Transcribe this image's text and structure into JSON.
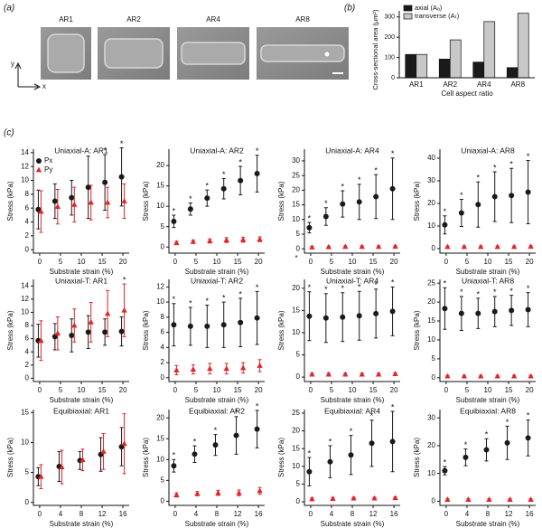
{
  "panel_labels": [
    "(a)",
    "(b)",
    "(c)"
  ],
  "images": {
    "labels": [
      "AR1",
      "AR2",
      "AR4",
      "AR8"
    ],
    "axes": [
      "y",
      "x"
    ]
  },
  "chart_data": [
    {
      "type": "bar",
      "categories": [
        "AR1",
        "AR2",
        "AR4",
        "AR8"
      ],
      "series": [
        {
          "name": "axial (Aₐ)",
          "color": "#1a1a1a",
          "values": [
            115,
            92,
            77,
            50
          ]
        },
        {
          "name": "transverse (Aₜ)",
          "color": "#c8c8c8",
          "values": [
            115,
            187,
            277,
            318
          ]
        }
      ],
      "ylim": [
        0,
        330
      ],
      "yticks": [
        0,
        100,
        200,
        300
      ],
      "ylabel": "Cross-sectional area (μm²)",
      "xlabel": "Cell aspect ratio"
    },
    {
      "type": "errorbar",
      "title": "Uniaxial-A: AR1",
      "x": [
        0,
        4,
        8,
        12,
        16,
        20
      ],
      "xlim": [
        -1.5,
        21.5
      ],
      "xticks": [
        0,
        5,
        10,
        15,
        20
      ],
      "ylim": [
        -0.5,
        14.5
      ],
      "yticks": [
        0,
        2,
        4,
        6,
        8,
        10,
        12,
        14
      ],
      "xlabel": "Substrate strain (%)",
      "ylabel": "Stress (kPa)",
      "legend": true,
      "series": [
        {
          "name": "Px",
          "color": "#1a1a1a",
          "marker": "circle",
          "values": [
            5.8,
            7.0,
            7.5,
            9.0,
            9.7,
            10.5
          ],
          "errors": [
            2.8,
            2.5,
            2.5,
            4.5,
            4.0,
            4.2
          ],
          "annotations": [
            null,
            null,
            null,
            null,
            "*",
            "*"
          ]
        },
        {
          "name": "Py",
          "color": "#e0262b",
          "marker": "triangle",
          "values": [
            5.5,
            6.2,
            6.5,
            6.8,
            6.8,
            7.0
          ],
          "errors": [
            3.0,
            2.5,
            2.5,
            2.5,
            2.2,
            2.5
          ]
        }
      ]
    },
    {
      "type": "errorbar",
      "title": "Uniaxial-A: AR2",
      "x": [
        0,
        4,
        8,
        12,
        16,
        20
      ],
      "xlim": [
        -1.5,
        21.5
      ],
      "xticks": [
        0,
        5,
        10,
        15,
        20
      ],
      "ylim": [
        -1.5,
        24
      ],
      "yticks": [
        0,
        5,
        10,
        15,
        20
      ],
      "xlabel": "Substrate strain (%)",
      "ylabel": "Stress (kPa)",
      "series": [
        {
          "color": "#1a1a1a",
          "marker": "circle",
          "values": [
            6.3,
            9.3,
            12.0,
            14.3,
            16.3,
            18.0
          ],
          "errors": [
            1.5,
            1.5,
            2.0,
            2.5,
            3.5,
            4.5
          ],
          "annotations": [
            "*",
            "*",
            "*",
            "*",
            "*",
            "*"
          ]
        },
        {
          "color": "#e0262b",
          "marker": "triangle",
          "values": [
            1.0,
            1.3,
            1.5,
            1.7,
            1.8,
            1.9
          ],
          "errors": [
            0.4,
            0.4,
            0.5,
            0.6,
            0.6,
            0.6
          ]
        }
      ]
    },
    {
      "type": "errorbar",
      "title": "Uniaxial-A: AR4",
      "x": [
        0,
        4,
        8,
        12,
        16,
        20
      ],
      "xlim": [
        -1.5,
        21.5
      ],
      "xticks": [
        0,
        5,
        10,
        15,
        20
      ],
      "ylim": [
        -1.5,
        34
      ],
      "yticks": [
        0,
        5,
        10,
        15,
        20,
        25,
        30
      ],
      "xlabel": "Substrate strain (%)",
      "ylabel": "Stress (kPa)",
      "corner_note": "*",
      "series": [
        {
          "color": "#1a1a1a",
          "marker": "circle",
          "values": [
            7.2,
            11.0,
            15.3,
            16.0,
            17.8,
            20.5
          ],
          "errors": [
            1.8,
            3.0,
            4.5,
            6.0,
            7.5,
            10.5
          ],
          "annotations": [
            "*",
            "*",
            "*",
            "*",
            "*",
            "*"
          ]
        },
        {
          "color": "#e0262b",
          "marker": "triangle",
          "values": [
            0.5,
            0.6,
            0.7,
            0.7,
            0.7,
            0.8
          ],
          "errors": [
            0.3,
            0.3,
            0.3,
            0.3,
            0.3,
            0.3
          ]
        }
      ]
    },
    {
      "type": "errorbar",
      "title": "Uniaxial-A: AR8",
      "x": [
        0,
        4,
        8,
        12,
        16,
        20
      ],
      "xlim": [
        -1.5,
        21.5
      ],
      "xticks": [
        0,
        5,
        10,
        15,
        20
      ],
      "ylim": [
        -2,
        44
      ],
      "yticks": [
        0,
        10,
        20,
        30,
        40
      ],
      "xlabel": "Substrate strain (%)",
      "ylabel": "Stress (kPa)",
      "series": [
        {
          "color": "#1a1a1a",
          "marker": "circle",
          "values": [
            10.5,
            15.8,
            19.5,
            23.0,
            23.5,
            25.0
          ],
          "errors": [
            4.0,
            6.0,
            10.0,
            11.0,
            12.0,
            14.0
          ],
          "annotations": [
            "*",
            "*",
            "*",
            "*",
            "*",
            "*"
          ]
        },
        {
          "color": "#e0262b",
          "marker": "triangle",
          "values": [
            0.8,
            0.8,
            0.8,
            0.8,
            0.8,
            0.9
          ],
          "errors": [
            0.4,
            0.4,
            0.4,
            0.4,
            0.4,
            0.4
          ]
        }
      ]
    },
    {
      "type": "errorbar",
      "title": "Uniaxial-T: AR1",
      "x": [
        0,
        4,
        8,
        12,
        16,
        20
      ],
      "xlim": [
        -1.5,
        21.5
      ],
      "xticks": [
        0,
        5,
        10,
        15,
        20
      ],
      "ylim": [
        -0.5,
        15
      ],
      "yticks": [
        0,
        2,
        4,
        6,
        8,
        10,
        12,
        14
      ],
      "xlabel": "Substrate strain (%)",
      "ylabel": "Stress (kPa)",
      "series": [
        {
          "color": "#1a1a1a",
          "marker": "circle",
          "values": [
            5.7,
            6.3,
            6.5,
            7.0,
            7.0,
            7.1
          ],
          "errors": [
            2.5,
            2.0,
            2.5,
            2.5,
            2.0,
            2.2
          ]
        },
        {
          "color": "#e0262b",
          "marker": "triangle",
          "values": [
            5.7,
            6.8,
            8.0,
            8.5,
            9.8,
            10.3
          ],
          "errors": [
            3.0,
            2.5,
            2.5,
            3.0,
            3.5,
            4.0
          ],
          "annotations": [
            null,
            null,
            null,
            null,
            null,
            "*"
          ]
        }
      ]
    },
    {
      "type": "errorbar",
      "title": "Uniaxial-T: AR2",
      "x": [
        0,
        4,
        8,
        12,
        16,
        20
      ],
      "xlim": [
        -1.5,
        21.5
      ],
      "xticks": [
        0,
        5,
        10,
        15,
        20
      ],
      "ylim": [
        -0.5,
        13
      ],
      "yticks": [
        0,
        2,
        4,
        6,
        8,
        10,
        12
      ],
      "xlabel": "Substrate strain (%)",
      "ylabel": "Stress (kPa)",
      "series": [
        {
          "color": "#1a1a1a",
          "marker": "circle",
          "values": [
            7.0,
            6.8,
            6.8,
            7.0,
            7.3,
            7.9
          ],
          "errors": [
            2.8,
            2.5,
            2.8,
            3.0,
            3.2,
            3.5
          ],
          "annotations": [
            "*",
            "*",
            "*",
            "*",
            "*",
            "*"
          ]
        },
        {
          "color": "#e0262b",
          "marker": "triangle",
          "values": [
            1.0,
            1.1,
            1.2,
            1.2,
            1.3,
            1.6
          ],
          "errors": [
            0.6,
            0.6,
            0.7,
            0.7,
            0.7,
            0.8
          ]
        }
      ]
    },
    {
      "type": "errorbar",
      "title": "Uniaxial-T: AR4",
      "x": [
        0,
        4,
        8,
        12,
        16,
        20
      ],
      "xlim": [
        -1.5,
        21.5
      ],
      "xticks": [
        0,
        5,
        10,
        15,
        20
      ],
      "ylim": [
        -1,
        22
      ],
      "yticks": [
        0,
        5,
        10,
        15,
        20
      ],
      "xlabel": "Substrate strain (%)",
      "ylabel": "Stress (kPa)",
      "series": [
        {
          "color": "#1a1a1a",
          "marker": "circle",
          "values": [
            13.7,
            13.3,
            13.5,
            13.8,
            14.3,
            14.8
          ],
          "errors": [
            5.5,
            5.5,
            5.5,
            5.5,
            5.5,
            5.5
          ],
          "annotations": [
            "*",
            "*",
            "*",
            "*",
            "*",
            "*"
          ]
        },
        {
          "color": "#e0262b",
          "marker": "triangle",
          "values": [
            0.6,
            0.6,
            0.6,
            0.6,
            0.6,
            0.7
          ],
          "errors": [
            0.3,
            0.3,
            0.3,
            0.3,
            0.3,
            0.3
          ]
        }
      ]
    },
    {
      "type": "errorbar",
      "title": "Uniaxial-T: AR8",
      "x": [
        0,
        4,
        8,
        12,
        16,
        20
      ],
      "xlim": [
        -1.5,
        21.5
      ],
      "xticks": [
        0,
        5,
        10,
        15,
        20
      ],
      "ylim": [
        -1,
        26
      ],
      "yticks": [
        0,
        5,
        10,
        15,
        20,
        25
      ],
      "xlabel": "Substrate strain (%)",
      "ylabel": "Stress (kPa)",
      "series": [
        {
          "color": "#1a1a1a",
          "marker": "circle",
          "values": [
            18.3,
            17.0,
            17.0,
            17.5,
            17.8,
            18.0
          ],
          "errors": [
            5.5,
            4.5,
            4.0,
            4.0,
            4.0,
            4.5
          ],
          "annotations": [
            "*",
            "*",
            "*",
            "*",
            "*",
            "*"
          ]
        },
        {
          "color": "#e0262b",
          "marker": "triangle",
          "values": [
            0.4,
            0.4,
            0.4,
            0.4,
            0.4,
            0.4
          ],
          "errors": [
            0.2,
            0.2,
            0.2,
            0.2,
            0.2,
            0.2
          ]
        }
      ]
    },
    {
      "type": "errorbar",
      "title": "Equibiaxial: AR1",
      "x": [
        0,
        4,
        8,
        12,
        16
      ],
      "xlim": [
        -1.2,
        17.2
      ],
      "xticks": [
        0,
        4,
        8,
        12,
        16
      ],
      "ylim": [
        -0.5,
        15.5
      ],
      "yticks": [
        0,
        5,
        10,
        15
      ],
      "xlabel": "Substrate strain (%)",
      "ylabel": "Stress (kPa)",
      "series": [
        {
          "color": "#1a1a1a",
          "marker": "circle",
          "values": [
            4.3,
            6.0,
            7.0,
            8.0,
            9.3
          ],
          "errors": [
            1.5,
            2.5,
            1.5,
            2.8,
            3.2
          ]
        },
        {
          "color": "#e0262b",
          "marker": "triangle",
          "values": [
            4.3,
            5.9,
            7.1,
            8.5,
            9.8
          ],
          "errors": [
            2.0,
            2.8,
            1.8,
            3.0,
            5.0
          ]
        }
      ]
    },
    {
      "type": "errorbar",
      "title": "Equibiaxial: AR2",
      "x": [
        0,
        4,
        8,
        12,
        16
      ],
      "xlim": [
        -1.2,
        17.2
      ],
      "xticks": [
        0,
        4,
        8,
        12,
        16
      ],
      "ylim": [
        -1,
        22
      ],
      "yticks": [
        0,
        5,
        10,
        15,
        20
      ],
      "xlabel": "Substrate strain (%)",
      "ylabel": "Stress (kPa)",
      "series": [
        {
          "color": "#1a1a1a",
          "marker": "circle",
          "values": [
            8.5,
            11.3,
            13.5,
            15.8,
            17.3
          ],
          "errors": [
            1.5,
            2.0,
            2.5,
            4.5,
            4.5
          ],
          "annotations": [
            "*",
            "*",
            "*",
            "*",
            "*"
          ]
        },
        {
          "color": "#e0262b",
          "marker": "triangle",
          "values": [
            1.5,
            1.8,
            2.0,
            2.0,
            2.5
          ],
          "errors": [
            0.5,
            0.5,
            0.6,
            0.7,
            0.8
          ]
        }
      ]
    },
    {
      "type": "errorbar",
      "title": "Equibiaxial: AR4",
      "x": [
        0,
        4,
        8,
        12,
        16
      ],
      "xlim": [
        -1.2,
        17.2
      ],
      "xticks": [
        0,
        4,
        8,
        12,
        16
      ],
      "ylim": [
        -1,
        26
      ],
      "yticks": [
        0,
        5,
        10,
        15,
        20,
        25
      ],
      "xlabel": "Substrate strain (%)",
      "ylabel": "Stress (kPa)",
      "series": [
        {
          "color": "#1a1a1a",
          "marker": "circle",
          "values": [
            8.5,
            11.3,
            13.2,
            16.5,
            17.0
          ],
          "errors": [
            4.0,
            4.5,
            5.5,
            6.5,
            8.5
          ],
          "annotations": [
            "*",
            "*",
            "*",
            "*",
            "*"
          ]
        },
        {
          "color": "#e0262b",
          "marker": "triangle",
          "values": [
            0.8,
            0.9,
            1.0,
            1.0,
            1.1
          ],
          "errors": [
            0.3,
            0.3,
            0.3,
            0.3,
            0.3
          ]
        }
      ]
    },
    {
      "type": "errorbar",
      "title": "Equibiaxial: AR8",
      "x": [
        0,
        4,
        8,
        12,
        16
      ],
      "xlim": [
        -1.2,
        17.2
      ],
      "xticks": [
        0,
        4,
        8,
        12,
        16
      ],
      "ylim": [
        -1.5,
        33
      ],
      "yticks": [
        0,
        10,
        20,
        30
      ],
      "xlabel": "Substrate strain (%)",
      "ylabel": "Stress (kPa)",
      "series": [
        {
          "color": "#1a1a1a",
          "marker": "circle",
          "values": [
            11.0,
            15.8,
            18.5,
            21.0,
            22.8
          ],
          "errors": [
            1.5,
            3.0,
            4.0,
            6.0,
            6.5
          ],
          "annotations": [
            "*",
            "*",
            "*",
            "*",
            "*"
          ]
        },
        {
          "color": "#e0262b",
          "marker": "triangle",
          "values": [
            0.6,
            0.6,
            0.6,
            0.6,
            0.6
          ],
          "errors": [
            0.3,
            0.3,
            0.3,
            0.3,
            0.3
          ]
        }
      ]
    }
  ]
}
